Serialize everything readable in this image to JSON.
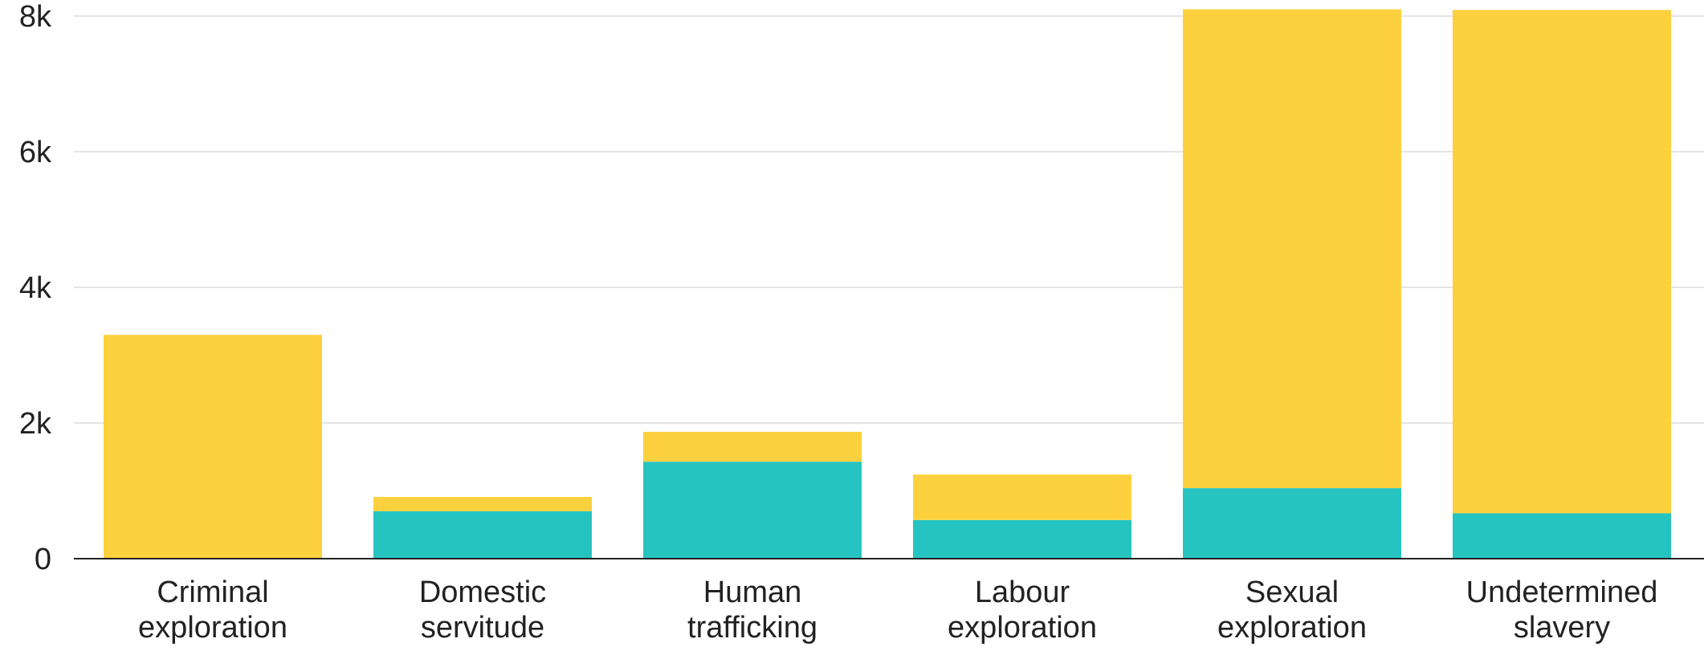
{
  "chart_data": {
    "type": "bar",
    "stacked": true,
    "categories": [
      [
        "Criminal",
        "exploration"
      ],
      [
        "Domestic",
        "servitude"
      ],
      [
        "Human",
        "trafficking"
      ],
      [
        "Labour",
        "exploration"
      ],
      [
        "Sexual",
        "exploration"
      ],
      [
        "Undetermined",
        "slavery"
      ]
    ],
    "series": [
      {
        "color": "#26c4c1",
        "values": [
          0,
          700,
          1430,
          570,
          1040,
          670
        ]
      },
      {
        "color": "#fdd13d",
        "values": [
          3300,
          210,
          440,
          670,
          7060,
          7420
        ]
      }
    ],
    "ylim": [
      0,
      8000
    ],
    "yticks": [
      {
        "value": 0,
        "label": "0"
      },
      {
        "value": 2000,
        "label": "2k"
      },
      {
        "value": 4000,
        "label": "4k"
      },
      {
        "value": 6000,
        "label": "6k"
      },
      {
        "value": 8000,
        "label": "8k"
      }
    ],
    "grid": true,
    "legend": "none"
  }
}
